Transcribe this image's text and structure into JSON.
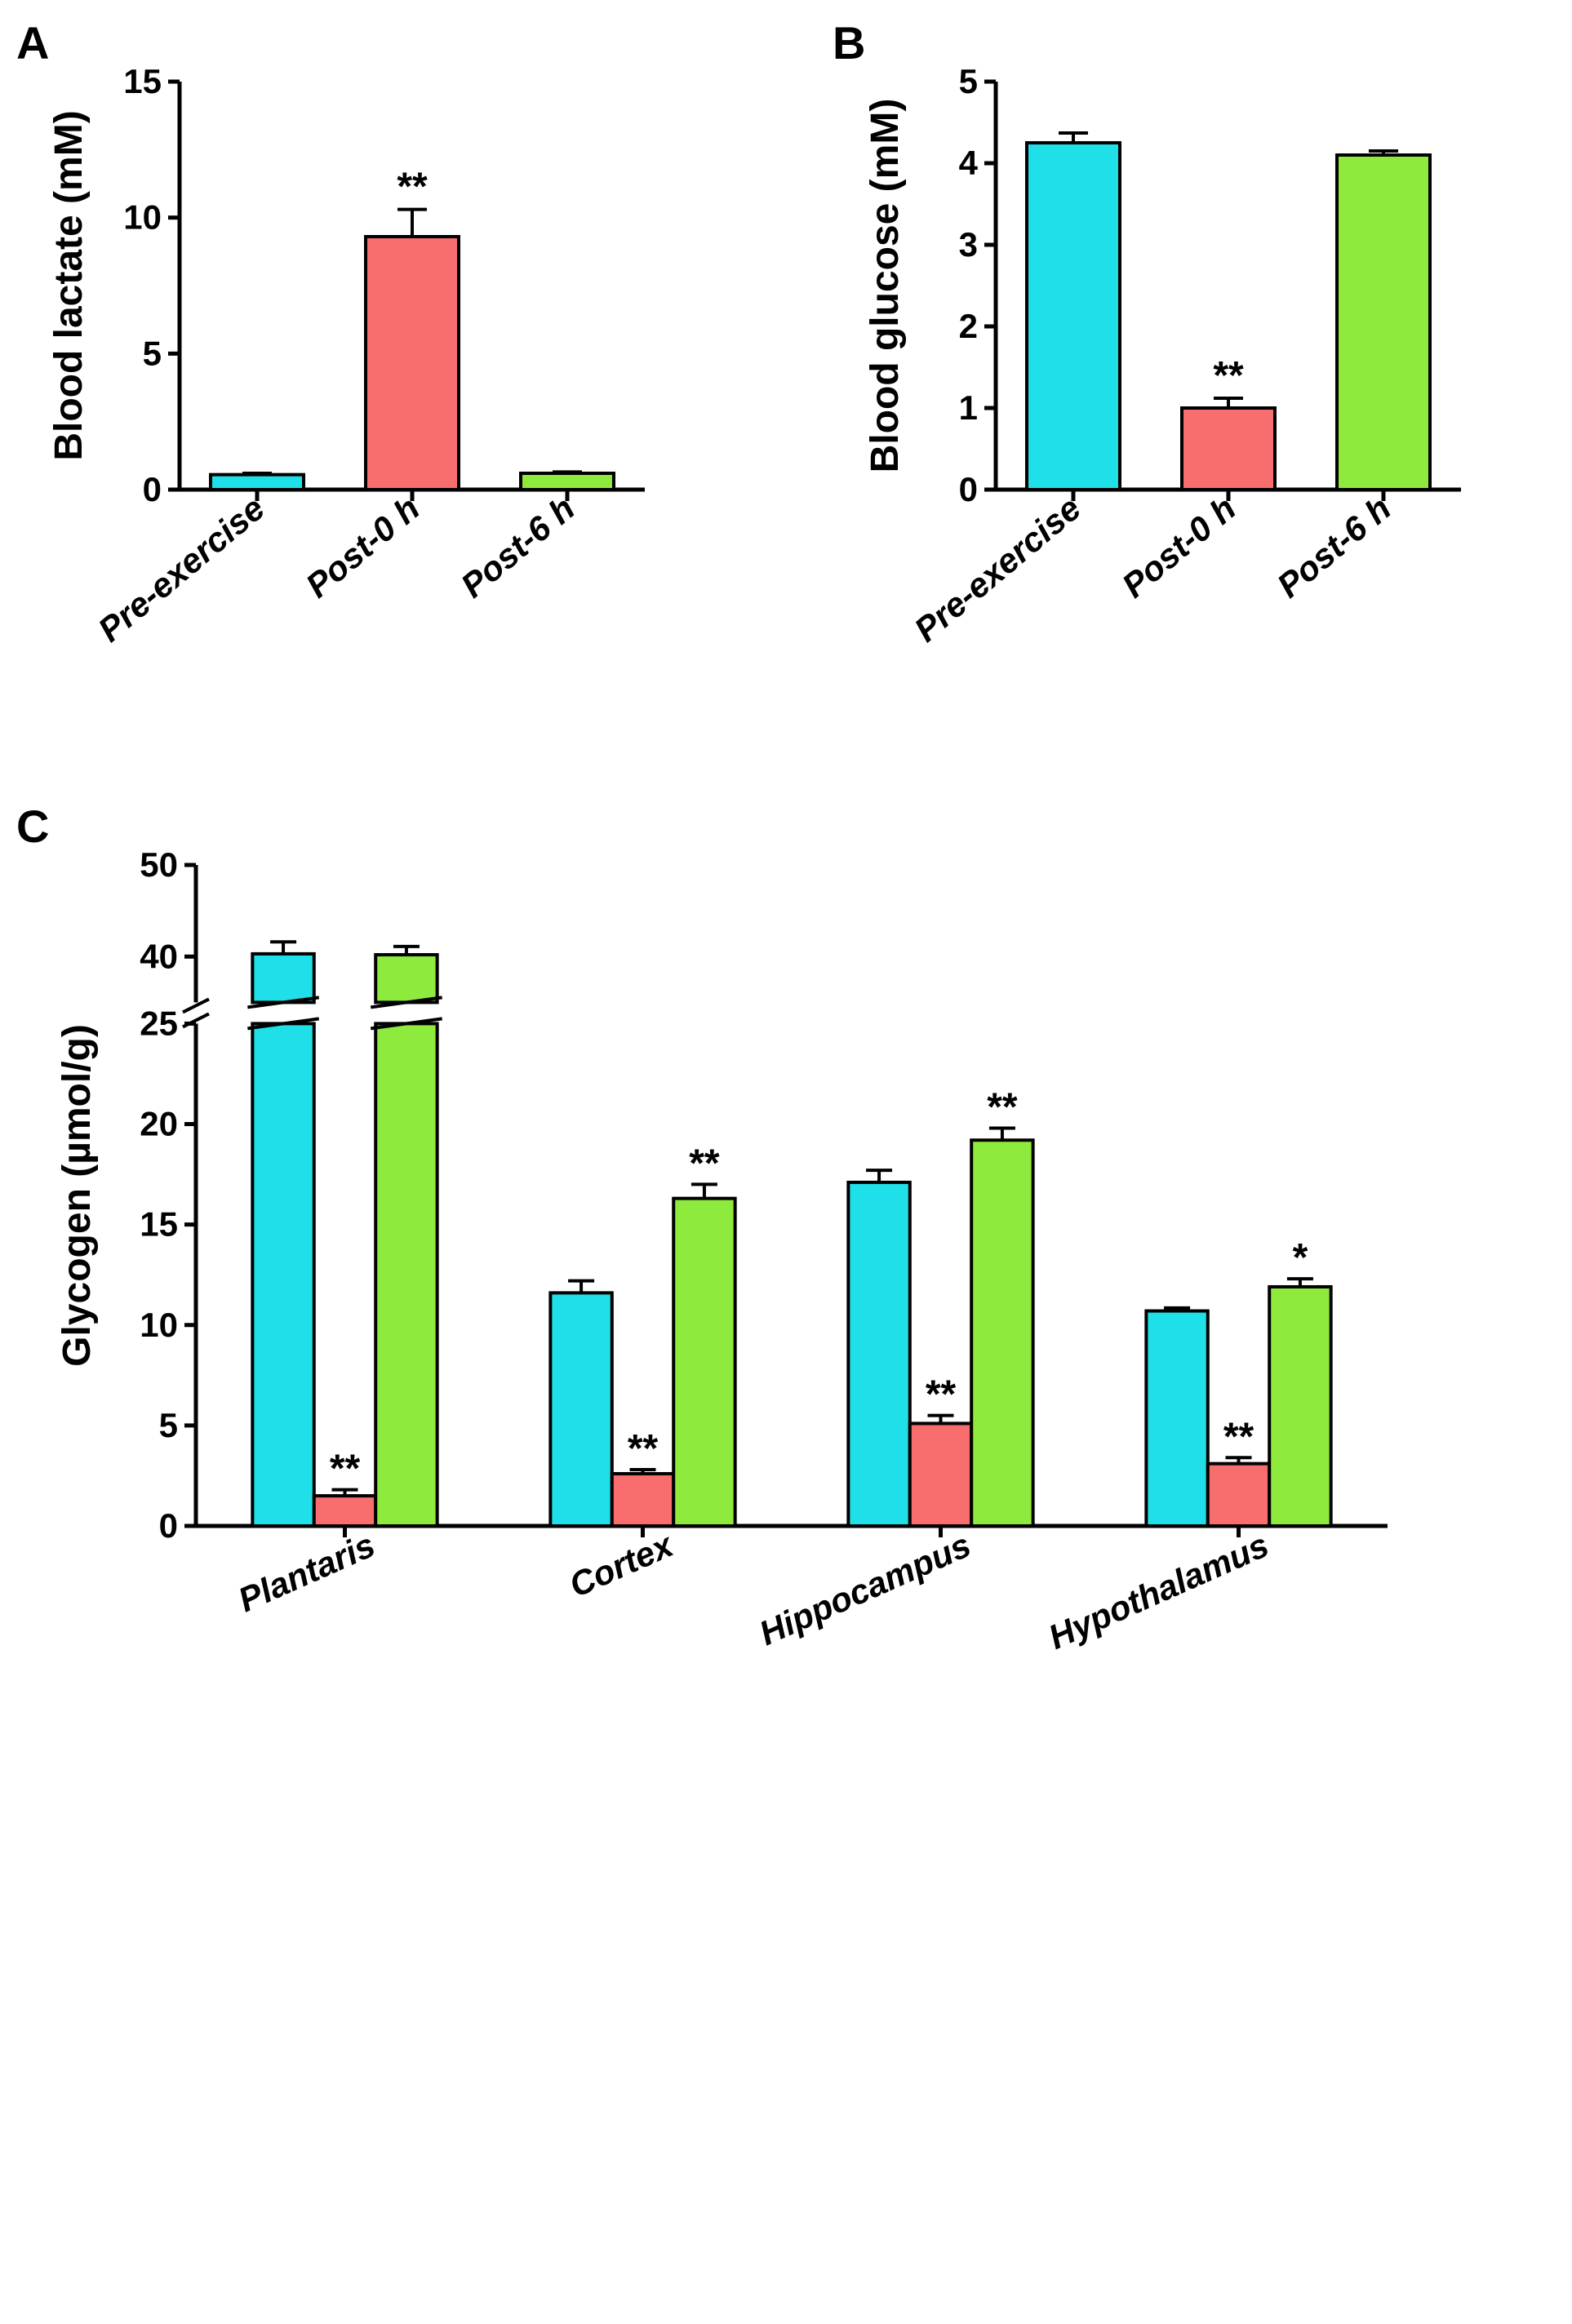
{
  "colors": {
    "pre": "#1fe0e8",
    "post0": "#f86d6d",
    "post6": "#8eea3d",
    "stroke": "#000000",
    "bg": "#ffffff"
  },
  "panelA": {
    "label": "A",
    "type": "bar",
    "ylabel": "Blood lactate (mM)",
    "ylim": [
      0,
      15
    ],
    "yticks": [
      0,
      5,
      10,
      15
    ],
    "categories": [
      "Pre-exercise",
      "Post-0 h",
      "Post-6 h"
    ],
    "values": [
      0.55,
      9.3,
      0.6
    ],
    "errors": [
      0.05,
      1.0,
      0.05
    ],
    "bar_colors": [
      "#1fe0e8",
      "#f86d6d",
      "#8eea3d"
    ],
    "sig": [
      "",
      "**",
      ""
    ],
    "bar_width": 0.6,
    "gap": 0.4,
    "axis_fontsize": 48,
    "tick_fontsize": 42,
    "label_fontsize": 42
  },
  "panelB": {
    "label": "B",
    "type": "bar",
    "ylabel": "Blood glucose (mM)",
    "ylim": [
      0,
      5
    ],
    "yticks": [
      0,
      1,
      2,
      3,
      4,
      5
    ],
    "categories": [
      "Pre-exercise",
      "Post-0 h",
      "Post-6 h"
    ],
    "values": [
      4.25,
      1.0,
      4.1
    ],
    "errors": [
      0.12,
      0.12,
      0.05
    ],
    "bar_colors": [
      "#1fe0e8",
      "#f86d6d",
      "#8eea3d"
    ],
    "sig": [
      "",
      "**",
      ""
    ],
    "bar_width": 0.6,
    "gap": 0.4,
    "axis_fontsize": 48,
    "tick_fontsize": 42,
    "label_fontsize": 42
  },
  "panelC": {
    "label": "C",
    "type": "grouped-bar-broken",
    "ylabel": "Glycogen (µmol/g)",
    "ylim_lower": [
      0,
      25
    ],
    "ylim_upper": [
      35,
      50
    ],
    "yticks_lower": [
      0,
      5,
      10,
      15,
      20,
      25
    ],
    "yticks_upper": [
      40,
      50
    ],
    "groups": [
      "Plantaris",
      "Cortex",
      "Hippocampus",
      "Hypothalamus"
    ],
    "series": [
      "Pre-exercise",
      "Post-0 h",
      "Post-6 h"
    ],
    "series_colors": [
      "#1fe0e8",
      "#f86d6d",
      "#8eea3d"
    ],
    "values": [
      [
        40.3,
        1.5,
        40.2
      ],
      [
        11.6,
        2.6,
        16.3
      ],
      [
        17.1,
        5.1,
        19.2
      ],
      [
        10.7,
        3.1,
        11.9
      ]
    ],
    "errors": [
      [
        1.3,
        0.3,
        0.9
      ],
      [
        0.6,
        0.2,
        0.7
      ],
      [
        0.6,
        0.4,
        0.6
      ],
      [
        0.15,
        0.3,
        0.4
      ]
    ],
    "sig": [
      [
        "",
        "**",
        ""
      ],
      [
        "",
        "**",
        "**"
      ],
      [
        "",
        "**",
        "**"
      ],
      [
        "",
        "**",
        "*"
      ]
    ],
    "bar_width": 0.25,
    "group_gap": 0.6,
    "axis_fontsize": 48,
    "tick_fontsize": 42,
    "label_fontsize": 42
  }
}
